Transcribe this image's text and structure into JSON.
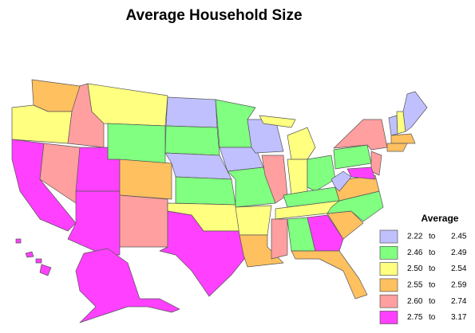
{
  "title": "Average Household Size",
  "legend": {
    "title": "Average",
    "items": [
      {
        "from": "2.22",
        "to_word": "to",
        "to": "2.45",
        "color": "#c0c0ff"
      },
      {
        "from": "2.46",
        "to_word": "to",
        "to": "2.49",
        "color": "#80ff80"
      },
      {
        "from": "2.50",
        "to_word": "to",
        "to": "2.54",
        "color": "#ffff80"
      },
      {
        "from": "2.55",
        "to_word": "to",
        "to": "2.59",
        "color": "#ffc060"
      },
      {
        "from": "2.60",
        "to_word": "to",
        "to": "2.74",
        "color": "#ff9f9f"
      },
      {
        "from": "2.75",
        "to_word": "to",
        "to": "3.17",
        "color": "#ff40ff"
      }
    ]
  }
}
